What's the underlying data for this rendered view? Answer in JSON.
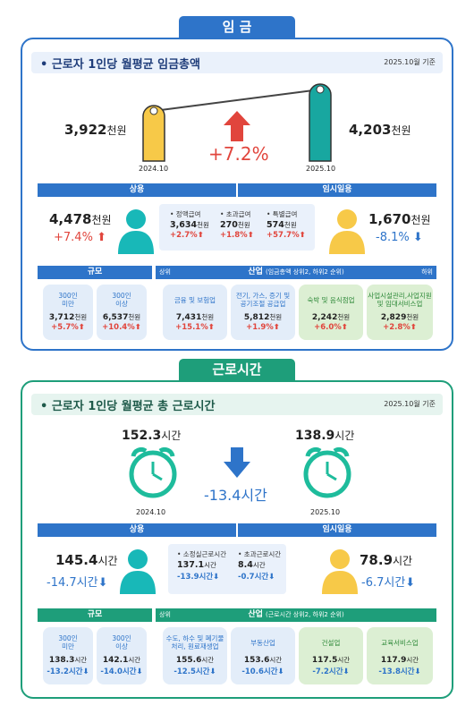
{
  "wage": {
    "tab": "임 금",
    "title": "• 근로자 1인당 월평균 임금총액",
    "date": "2025.10월 기준",
    "prev": {
      "value": "3,922",
      "unit": "천원",
      "label": "2024.10"
    },
    "curr": {
      "value": "4,203",
      "unit": "천원",
      "label": "2025.10"
    },
    "change": "+7.2%",
    "regular": {
      "bar": "상용",
      "value": "4,478",
      "unit": "천원",
      "change": "+7.4%"
    },
    "temp": {
      "bar": "임시일용",
      "value": "1,670",
      "unit": "천원",
      "change": "-8.1%"
    },
    "items": [
      {
        "label": "• 정액급여",
        "value": "3,634",
        "unit": "천원",
        "change": "+2.7%"
      },
      {
        "label": "• 초과급여",
        "value": "270",
        "unit": "천원",
        "change": "+1.8%"
      },
      {
        "label": "• 특별급여",
        "value": "574",
        "unit": "천원",
        "change": "+57.7%"
      }
    ],
    "size_bar": "규모",
    "ind_bar": {
      "left": "상위",
      "title": "산업",
      "note": "(임금총액 상위2, 하위2 순위)",
      "right": "하위"
    },
    "size_cards": [
      {
        "name": "300인\n미만",
        "value": "3,712",
        "unit": "천원",
        "change": "+5.7%"
      },
      {
        "name": "300인\n이상",
        "value": "6,537",
        "unit": "천원",
        "change": "+10.4%"
      }
    ],
    "ind_cards": [
      {
        "name": "금융 및 보험업",
        "value": "7,431",
        "unit": "천원",
        "change": "+15.1%"
      },
      {
        "name": "전기, 가스, 증기 및\n공기조절 공급업",
        "value": "5,812",
        "unit": "천원",
        "change": "+1.9%"
      },
      {
        "name": "숙박 및 음식점업",
        "value": "2,242",
        "unit": "천원",
        "change": "+6.0%"
      },
      {
        "name": "사업시설관리,사업지원\n및 임대서비스업",
        "value": "2,829",
        "unit": "천원",
        "change": "+2.8%"
      }
    ]
  },
  "hours": {
    "tab": "근로시간",
    "title": "• 근로자 1인당 월평균 총 근로시간",
    "date": "2025.10월 기준",
    "prev": {
      "value": "152.3",
      "unit": "시간",
      "label": "2024.10"
    },
    "curr": {
      "value": "138.9",
      "unit": "시간",
      "label": "2025.10"
    },
    "change": "-13.4시간",
    "regular": {
      "bar": "상용",
      "value": "145.4",
      "unit": "시간",
      "change": "-14.7시간"
    },
    "temp": {
      "bar": "임시일용",
      "value": "78.9",
      "unit": "시간",
      "change": "-6.7시간"
    },
    "items": [
      {
        "label": "• 소정실근로시간",
        "value": "137.1",
        "unit": "시간",
        "change": "-13.9시간"
      },
      {
        "label": "• 초과근로시간",
        "value": "8.4",
        "unit": "시간",
        "change": "-0.7시간"
      }
    ],
    "size_bar": "규모",
    "ind_bar": {
      "left": "상위",
      "title": "산업",
      "note": "(근로시간 상위2, 하위2 순위)"
    },
    "size_cards": [
      {
        "name": "300인\n미만",
        "value": "138.3",
        "unit": "시간",
        "change": "-13.2시간"
      },
      {
        "name": "300인\n이상",
        "value": "142.1",
        "unit": "시간",
        "change": "-14.0시간"
      }
    ],
    "ind_cards": [
      {
        "name": "수도, 하수 및 폐기물\n처리, 원료재생업",
        "value": "155.6",
        "unit": "시간",
        "change": "-12.5시간"
      },
      {
        "name": "부동산업",
        "value": "153.6",
        "unit": "시간",
        "change": "-10.6시간"
      },
      {
        "name": "건설업",
        "value": "117.5",
        "unit": "시간",
        "change": "-7.2시간"
      },
      {
        "name": "교육서비스업",
        "value": "117.9",
        "unit": "시간",
        "change": "-13.8시간"
      }
    ]
  },
  "colors": {
    "blue": "#2e74c9",
    "green": "#1e9e7a",
    "yellow": "#f7c948",
    "teal": "#18b8b8",
    "red": "#e1453c"
  }
}
